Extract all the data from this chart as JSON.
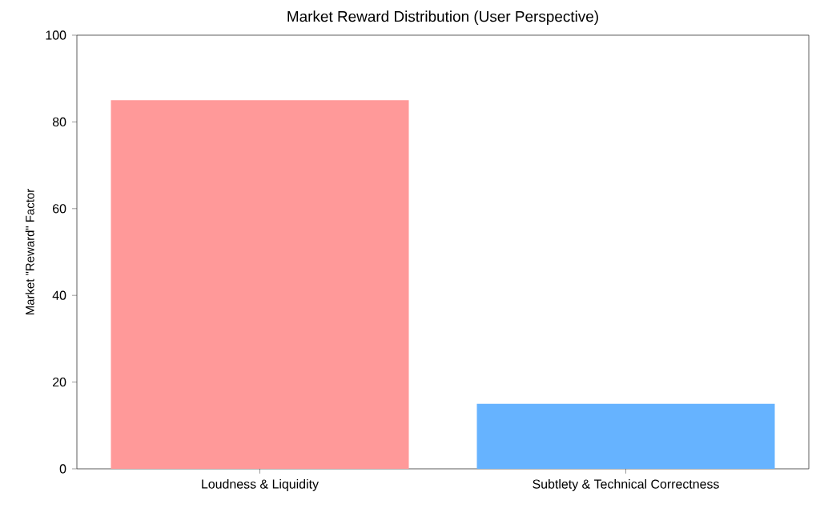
{
  "chart_data": {
    "type": "bar",
    "title": "Market Reward Distribution (User Perspective)",
    "ylabel": "Market \"Reward\" Factor",
    "categories": [
      "Loudness & Liquidity",
      "Subtlety & Technical Correctness"
    ],
    "values": [
      85,
      15
    ],
    "colors": [
      "#ff9999",
      "#66b3ff"
    ],
    "ylim": [
      0,
      100
    ],
    "yticks": [
      0,
      20,
      40,
      60,
      80,
      100
    ],
    "grid": false
  }
}
